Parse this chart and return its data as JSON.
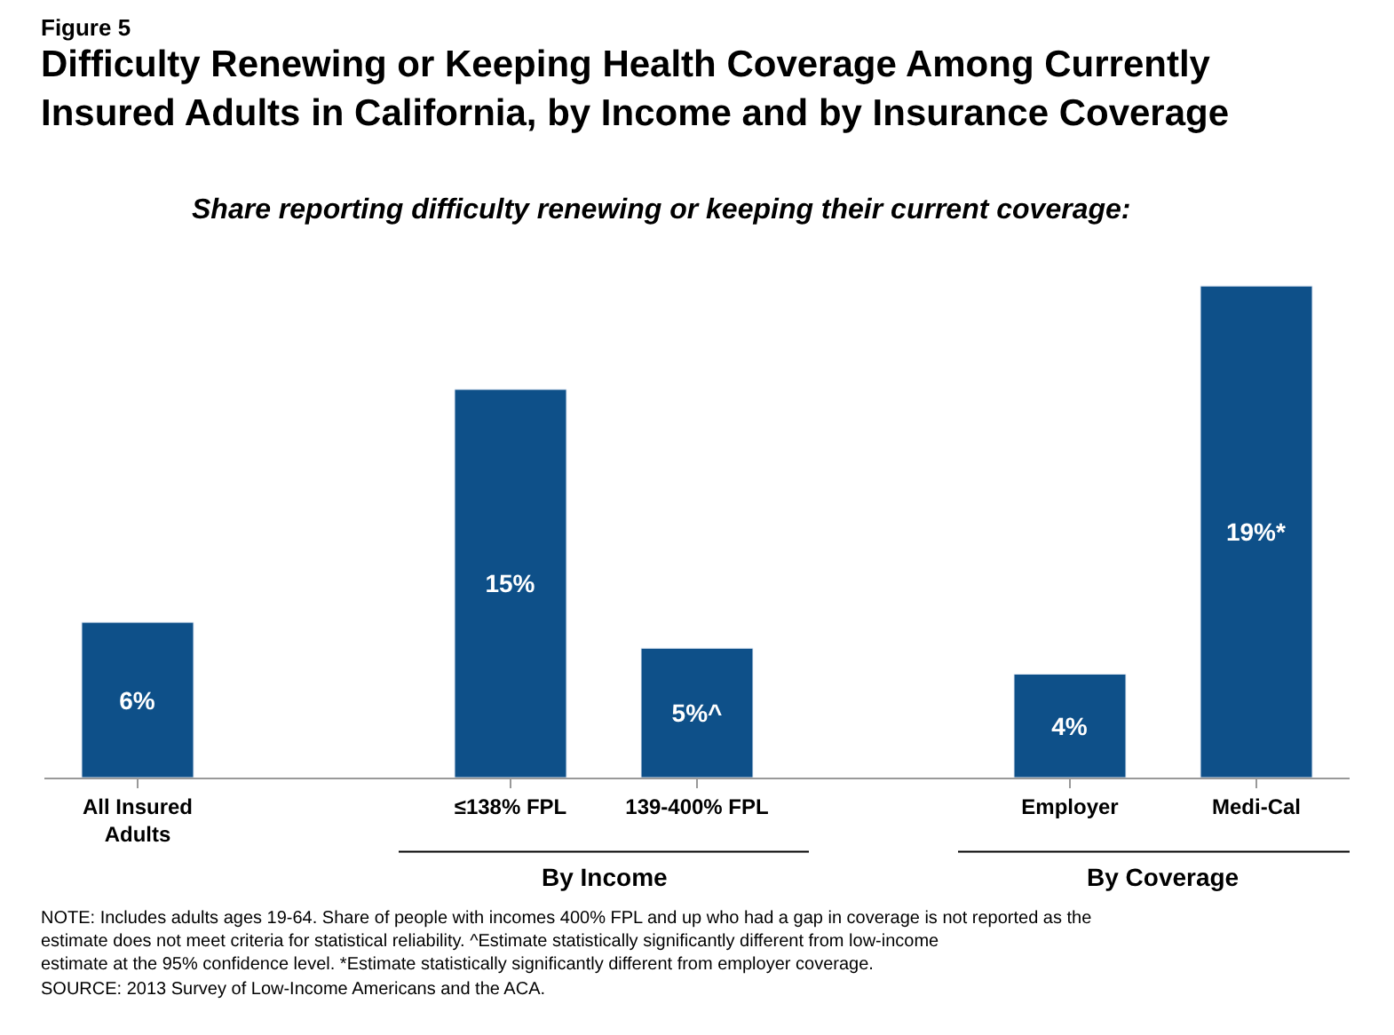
{
  "chart_data": {
    "type": "bar",
    "title": "Difficulty Renewing or Keeping Health Coverage Among Currently Insured Adults in California, by Income and by Insurance Coverage",
    "subtitle": "Share reporting difficulty renewing or keeping their current coverage:",
    "categories": [
      "All Insured Adults",
      null,
      "≤138% FPL",
      "139-400% FPL",
      null,
      "Employer",
      "Medi-Cal"
    ],
    "values": [
      6,
      null,
      15,
      5,
      null,
      4,
      19
    ],
    "value_labels": [
      "6%",
      null,
      "15%",
      "5%^",
      null,
      "4%",
      "19%*"
    ],
    "color": "#0e5089",
    "legend": false,
    "annotations": [
      "Figure 5",
      "By Income",
      "By Coverage",
      "NOTE: Includes adults ages 19-64. Share of people with incomes 400% FPL and up who had a gap in coverage is not reported as the estimate does not meet criteria for statistical reliability. ^Estimate statistically significantly different from low-income estimate at the 95% confidence level. *Estimate statistically significantly different from employer coverage.",
      "SOURCE: 2013 Survey of Low-Income Americans and the ACA."
    ]
  }
}
